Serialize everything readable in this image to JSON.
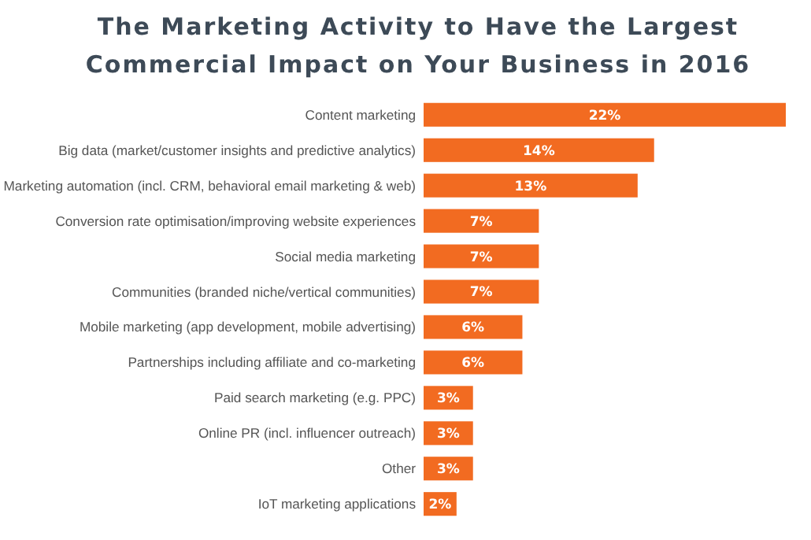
{
  "chart_data": {
    "type": "bar",
    "orientation": "horizontal",
    "title": "The Marketing Activity to Have the Largest Commercial Impact on Your Business in 2016",
    "categories": [
      "Content marketing",
      "Big data (market/customer insights and predictive analytics)",
      "Marketing automation (incl. CRM, behavioral email marketing & web)",
      "Conversion rate optimisation/improving website experiences",
      "Social media marketing",
      "Communities (branded niche/vertical communities)",
      "Mobile marketing (app development, mobile advertising)",
      "Partnerships including affiliate and co-marketing",
      "Paid search marketing (e.g. PPC)",
      "Online PR (incl. influencer outreach)",
      "Other",
      "IoT marketing applications"
    ],
    "values": [
      22,
      14,
      13,
      7,
      7,
      7,
      6,
      6,
      3,
      3,
      3,
      2
    ],
    "value_labels": [
      "22%",
      "14%",
      "13%",
      "7%",
      "7%",
      "7%",
      "6%",
      "6%",
      "3%",
      "3%",
      "3%",
      "2%"
    ],
    "color": "#f26b21"
  }
}
